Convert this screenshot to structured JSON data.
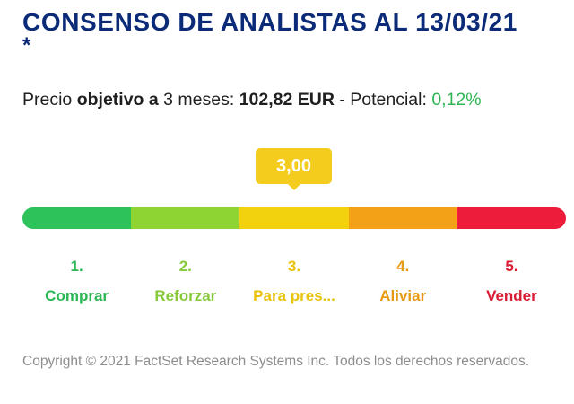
{
  "header": {
    "title": "CONSENSO DE ANALISTAS AL 13/03/21",
    "title_suffix": "*"
  },
  "price": {
    "prefix": "Precio ",
    "bold_word": "objetivo a",
    "middle": " 3 meses: ",
    "value": "102,82 EUR",
    "potential_label": " - Potencial: ",
    "potential_value": "0,12%"
  },
  "score": {
    "value": "3,00",
    "color": "#f4cc1d"
  },
  "scale": {
    "segments": [
      {
        "number": "1.",
        "label": "Comprar",
        "color": "#2dc35a",
        "text_color": "#2cb654"
      },
      {
        "number": "2.",
        "label": "Reforzar",
        "color": "#8ed533",
        "text_color": "#86c93a"
      },
      {
        "number": "3.",
        "label": "Para pres...",
        "color": "#f2d10f",
        "text_color": "#e8c20b"
      },
      {
        "number": "4.",
        "label": "Aliviar",
        "color": "#f3a218",
        "text_color": "#e79a14"
      },
      {
        "number": "5.",
        "label": "Vender",
        "color": "#ee1c3b",
        "text_color": "#d81c34"
      }
    ]
  },
  "footer": {
    "copyright": "Copyright © 2021 FactSet Research Systems Inc. Todos los derechos reservados."
  }
}
